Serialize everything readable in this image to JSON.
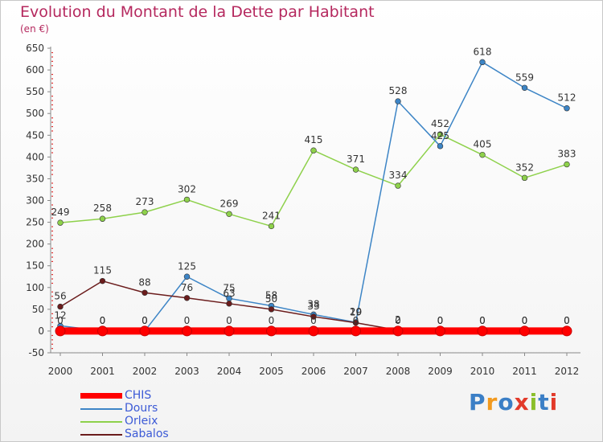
{
  "title": "Evolution du Montant de la Dette par Habitant",
  "subtitle": "(en €)",
  "logo": {
    "text": "Proxiti",
    "colors": [
      "#3b7fc6",
      "#f29a1f",
      "#3b7fc6",
      "#e23a2a",
      "#8bbf2b",
      "#3b7fc6",
      "#e23a2a"
    ]
  },
  "chart_data": {
    "type": "line",
    "title": "Evolution du Montant de la Dette par Habitant",
    "subtitle": "(en €)",
    "xlabel": "",
    "ylabel": "",
    "x": [
      "2000",
      "2001",
      "2002",
      "2003",
      "2004",
      "2005",
      "2006",
      "2007",
      "2008",
      "2009",
      "2010",
      "2011",
      "2012"
    ],
    "yticks": [
      -50,
      0,
      50,
      100,
      150,
      200,
      250,
      300,
      350,
      400,
      450,
      500,
      550,
      600,
      650
    ],
    "ylim": [
      -50,
      650
    ],
    "grid": false,
    "legend_position": "bottom-left",
    "series": [
      {
        "name": "CHIS",
        "color": "#ff0000",
        "values": [
          0,
          0,
          0,
          0,
          0,
          0,
          0,
          0,
          0,
          0,
          0,
          0,
          0
        ]
      },
      {
        "name": "Dours",
        "color": "#3d85c6",
        "values": [
          12,
          0,
          0,
          125,
          75,
          58,
          38,
          20,
          528,
          425,
          618,
          559,
          512
        ]
      },
      {
        "name": "Orleix",
        "color": "#8ed14b",
        "values": [
          249,
          258,
          273,
          302,
          269,
          241,
          415,
          371,
          334,
          452,
          405,
          352,
          383
        ]
      },
      {
        "name": "Sabalos",
        "color": "#6b1c1c",
        "values": [
          56,
          115,
          88,
          76,
          63,
          50,
          33,
          19,
          2,
          0,
          0,
          0,
          0
        ]
      }
    ]
  }
}
